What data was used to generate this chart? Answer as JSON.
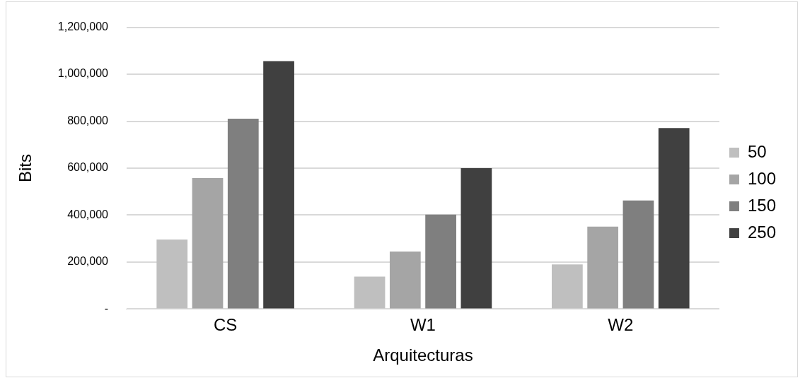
{
  "chart_data": {
    "type": "bar",
    "xlabel": "Arquitecturas",
    "ylabel": "Bits",
    "categories": [
      "CS",
      "W1",
      "W2"
    ],
    "series": [
      {
        "name": "50",
        "color": "#bfbfbf",
        "values": [
          296000,
          138000,
          190000
        ]
      },
      {
        "name": "100",
        "color": "#a5a5a5",
        "values": [
          558000,
          245000,
          351000
        ]
      },
      {
        "name": "150",
        "color": "#7f7f7f",
        "values": [
          811000,
          402000,
          462000
        ]
      },
      {
        "name": "250",
        "color": "#404040",
        "values": [
          1056000,
          600000,
          771000
        ]
      }
    ],
    "ylim": [
      0,
      1200000
    ],
    "yticks": [
      {
        "value": 0,
        "label": "-"
      },
      {
        "value": 200000,
        "label": "200,000"
      },
      {
        "value": 400000,
        "label": "400,000"
      },
      {
        "value": 600000,
        "label": "600,000"
      },
      {
        "value": 800000,
        "label": "800,000"
      },
      {
        "value": 1000000,
        "label": "1,000,000"
      },
      {
        "value": 1200000,
        "label": "1,200,000"
      }
    ],
    "grid": "y",
    "legend": "right"
  }
}
